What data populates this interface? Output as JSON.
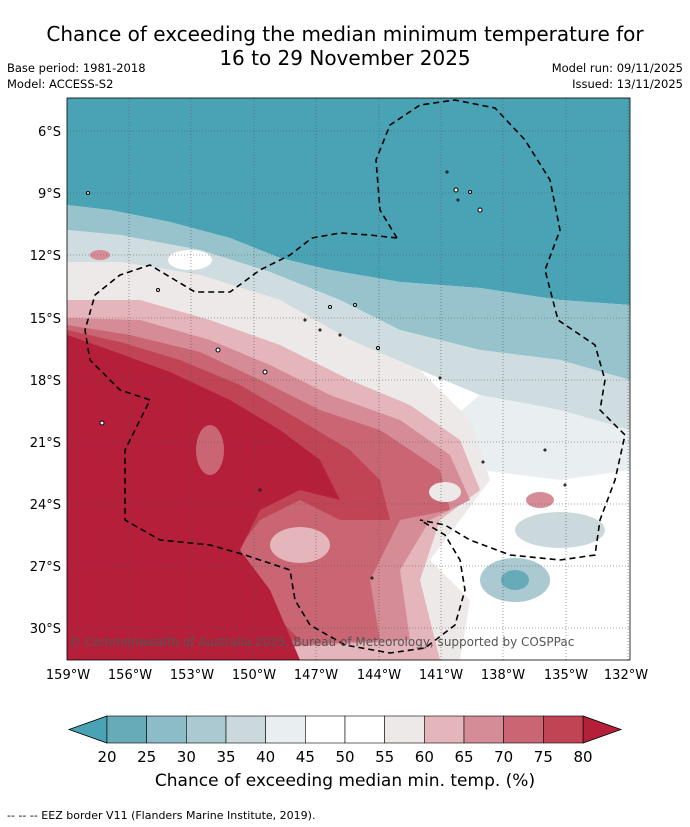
{
  "title_line1": "Chance of exceeding the median minimum temperature for",
  "title_line2": "16 to 29 November 2025",
  "meta_left": [
    "Base period: 1981-2018",
    "Model: ACCESS-S2"
  ],
  "meta_right": [
    "Model run: 09/11/2025",
    "Issued: 13/11/2025"
  ],
  "lat_ticks": [
    "6°S",
    "9°S",
    "12°S",
    "15°S",
    "18°S",
    "21°S",
    "24°S",
    "27°S",
    "30°S"
  ],
  "lon_ticks": [
    "159°W",
    "156°W",
    "153°W",
    "150°W",
    "147°W",
    "144°W",
    "141°W",
    "138°W",
    "135°W",
    "132°W"
  ],
  "copyright": "© Commonwealth of Australia 2025, Bureau of Meteorology, supported by COSPPac",
  "colorbar": {
    "ticks": [
      "20",
      "25",
      "30",
      "35",
      "40",
      "45",
      "50",
      "55",
      "60",
      "65",
      "70",
      "75",
      "80"
    ],
    "colors": [
      "#67abb8",
      "#8bbcc7",
      "#aac9d0",
      "#cbd9dd",
      "#e9eef1",
      "#ffffff",
      "#ffffff",
      "#ede9e9",
      "#e4b5bb",
      "#d68c96",
      "#ca6673",
      "#c04454"
    ],
    "under_color": "#4aa3b4",
    "over_color": "#b51f3a",
    "label": "Chance of exceeding median min. temp. (%)"
  },
  "footer": "--  --  -- EEZ border V11 (Flanders Marine Institute, 2019)."
}
